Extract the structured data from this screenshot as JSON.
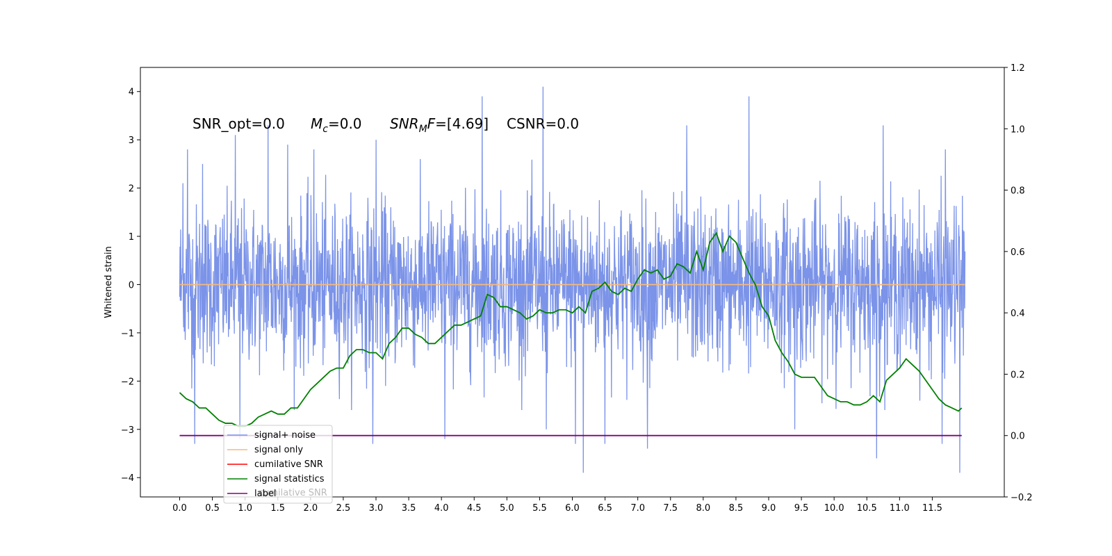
{
  "chart_data": {
    "type": "line",
    "ylabel": "Whitened strain",
    "xlim": [
      -0.6,
      12.6
    ],
    "ylim": [
      -4.4,
      4.5
    ],
    "y2lim": [
      -0.2,
      1.2
    ],
    "x_ticks": [
      "0.0",
      "0.5",
      "1.0",
      "1.5",
      "2.0",
      "2.5",
      "3.0",
      "3.5",
      "4.0",
      "4.5",
      "5.0",
      "5.5",
      "6.0",
      "6.5",
      "7.0",
      "7.5",
      "8.0",
      "8.5",
      "9.0",
      "9.5",
      "10.0",
      "10.5",
      "11.0",
      "11.5"
    ],
    "y_ticks": [
      "4",
      "3",
      "2",
      "1",
      "0",
      "−1",
      "−2",
      "−3",
      "−4"
    ],
    "y2_ticks": [
      "1.2",
      "1.0",
      "0.8",
      "0.6",
      "0.4",
      "0.2",
      "0.0",
      "−0.2"
    ],
    "annotations": {
      "snr_opt": "SNR_opt=0.0",
      "mc_symbol": "M",
      "mc_sub": "c",
      "mc_value": "=0.0",
      "snrmf_symbol": "SNR",
      "snrmf_sub": "M",
      "snrmf_F": "F",
      "snrmf_value": "=[4.69]",
      "csnr": "CSNR=0.0"
    },
    "legend": {
      "placement": "lower-left",
      "entries": [
        "signal+ noise",
        "signal only",
        "cumilative SNR",
        "signal statistics",
        "label"
      ],
      "ghost_text": "cumilative SNR"
    },
    "series": [
      {
        "name": "signal+ noise",
        "color": "#7b93e8",
        "axis": "left",
        "x_range": [
          0.0,
          12.0
        ],
        "description": "noise samples",
        "spikes": [
          {
            "x": 0.05,
            "y": 2.1
          },
          {
            "x": 0.12,
            "y": 2.8
          },
          {
            "x": 0.23,
            "y": -3.3
          },
          {
            "x": 0.35,
            "y": 2.5
          },
          {
            "x": 0.85,
            "y": 3.1
          },
          {
            "x": 0.92,
            "y": -3.2
          },
          {
            "x": 1.35,
            "y": 3.3
          },
          {
            "x": 1.65,
            "y": 2.9
          },
          {
            "x": 2.05,
            "y": 2.8
          },
          {
            "x": 2.95,
            "y": -3.3
          },
          {
            "x": 3.0,
            "y": 3.0
          },
          {
            "x": 4.05,
            "y": -3.2
          },
          {
            "x": 4.62,
            "y": 3.9
          },
          {
            "x": 5.55,
            "y": 4.1
          },
          {
            "x": 5.6,
            "y": -3.0
          },
          {
            "x": 6.05,
            "y": -3.3
          },
          {
            "x": 6.17,
            "y": -3.9
          },
          {
            "x": 6.5,
            "y": -3.3
          },
          {
            "x": 7.15,
            "y": -3.4
          },
          {
            "x": 7.75,
            "y": 3.3
          },
          {
            "x": 8.7,
            "y": 3.9
          },
          {
            "x": 9.4,
            "y": -3.0
          },
          {
            "x": 10.65,
            "y": -3.6
          },
          {
            "x": 10.75,
            "y": 3.3
          },
          {
            "x": 11.65,
            "y": -3.3
          },
          {
            "x": 11.7,
            "y": 2.8
          },
          {
            "x": 11.92,
            "y": -3.9
          }
        ]
      },
      {
        "name": "signal only",
        "color": "#f7b97a",
        "axis": "left",
        "x": [
          0.0,
          12.0
        ],
        "y": [
          0.0,
          0.0
        ]
      },
      {
        "name": "cumilative SNR",
        "color": "#ff0000",
        "axis": "right",
        "x": [],
        "y": []
      },
      {
        "name": "signal statistics",
        "color": "#008000",
        "axis": "right",
        "x": [
          0.0,
          0.1,
          0.2,
          0.3,
          0.4,
          0.5,
          0.6,
          0.7,
          0.8,
          0.9,
          1.0,
          1.1,
          1.2,
          1.3,
          1.4,
          1.5,
          1.6,
          1.7,
          1.8,
          1.9,
          2.0,
          2.1,
          2.2,
          2.3,
          2.4,
          2.5,
          2.6,
          2.7,
          2.8,
          2.9,
          3.0,
          3.1,
          3.2,
          3.3,
          3.4,
          3.5,
          3.6,
          3.7,
          3.8,
          3.9,
          4.0,
          4.1,
          4.2,
          4.3,
          4.4,
          4.5,
          4.6,
          4.7,
          4.8,
          4.9,
          5.0,
          5.1,
          5.2,
          5.3,
          5.4,
          5.5,
          5.6,
          5.7,
          5.8,
          5.9,
          6.0,
          6.1,
          6.2,
          6.3,
          6.4,
          6.5,
          6.6,
          6.7,
          6.8,
          6.9,
          7.0,
          7.1,
          7.2,
          7.3,
          7.4,
          7.5,
          7.6,
          7.7,
          7.8,
          7.9,
          8.0,
          8.1,
          8.2,
          8.3,
          8.4,
          8.5,
          8.6,
          8.7,
          8.8,
          8.9,
          9.0,
          9.1,
          9.2,
          9.3,
          9.4,
          9.5,
          9.6,
          9.7,
          9.8,
          9.9,
          10.0,
          10.1,
          10.2,
          10.3,
          10.4,
          10.5,
          10.6,
          10.7,
          10.8,
          10.9,
          11.0,
          11.1,
          11.2,
          11.3,
          11.4,
          11.5,
          11.6,
          11.7,
          11.8,
          11.9,
          11.95
        ],
        "y": [
          0.14,
          0.12,
          0.11,
          0.09,
          0.09,
          0.07,
          0.05,
          0.04,
          0.04,
          0.03,
          0.03,
          0.04,
          0.06,
          0.07,
          0.08,
          0.07,
          0.07,
          0.09,
          0.09,
          0.12,
          0.15,
          0.17,
          0.19,
          0.21,
          0.22,
          0.22,
          0.26,
          0.28,
          0.28,
          0.27,
          0.27,
          0.25,
          0.3,
          0.32,
          0.35,
          0.35,
          0.33,
          0.32,
          0.3,
          0.3,
          0.32,
          0.34,
          0.36,
          0.36,
          0.37,
          0.38,
          0.39,
          0.46,
          0.45,
          0.42,
          0.42,
          0.41,
          0.4,
          0.38,
          0.39,
          0.41,
          0.4,
          0.4,
          0.41,
          0.41,
          0.4,
          0.42,
          0.4,
          0.47,
          0.48,
          0.5,
          0.47,
          0.46,
          0.48,
          0.47,
          0.51,
          0.54,
          0.53,
          0.54,
          0.51,
          0.52,
          0.56,
          0.55,
          0.53,
          0.6,
          0.54,
          0.63,
          0.66,
          0.6,
          0.65,
          0.63,
          0.58,
          0.53,
          0.49,
          0.42,
          0.39,
          0.31,
          0.27,
          0.24,
          0.2,
          0.19,
          0.19,
          0.19,
          0.16,
          0.13,
          0.12,
          0.11,
          0.11,
          0.1,
          0.1,
          0.11,
          0.13,
          0.11,
          0.18,
          0.2,
          0.22,
          0.25,
          0.23,
          0.21,
          0.18,
          0.15,
          0.12,
          0.1,
          0.09,
          0.08,
          0.09
        ]
      },
      {
        "name": "label",
        "color": "#800080",
        "axis": "right",
        "x": [
          0.0,
          11.95
        ],
        "y": [
          0.0,
          0.0
        ]
      }
    ]
  }
}
